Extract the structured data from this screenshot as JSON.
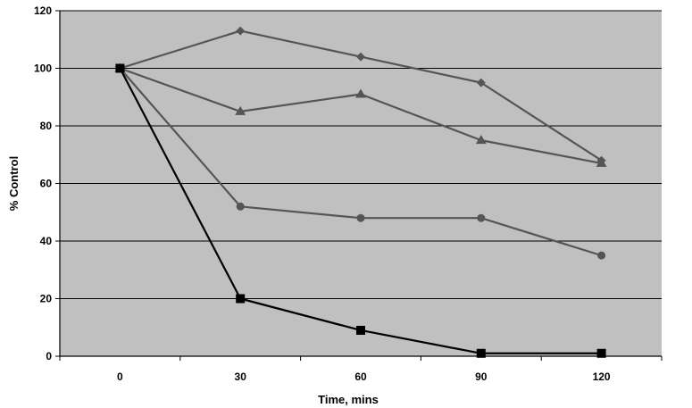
{
  "chart_data": {
    "type": "line",
    "title": "",
    "xlabel": "Time, mins",
    "ylabel": "% Control",
    "x": [
      0,
      30,
      60,
      90,
      120
    ],
    "x_ticks": [
      "0",
      "30",
      "60",
      "90",
      "120"
    ],
    "ylim": [
      0,
      120
    ],
    "y_ticks": [
      "0",
      "20",
      "40",
      "60",
      "80",
      "100",
      "120"
    ],
    "grid": "horizontal",
    "legend": "none",
    "colors": {
      "plot_background": "#c0c0c0",
      "gridline": "#000000",
      "gray_series": "#555555",
      "black_series": "#000000"
    },
    "series": [
      {
        "marker": "diamond",
        "color": "#555555",
        "values": [
          100,
          113,
          104,
          95,
          68
        ]
      },
      {
        "marker": "triangle",
        "color": "#555555",
        "values": [
          100,
          85,
          91,
          75,
          67
        ]
      },
      {
        "marker": "circle",
        "color": "#555555",
        "values": [
          100,
          52,
          48,
          48,
          35
        ]
      },
      {
        "marker": "square",
        "color": "#000000",
        "values": [
          100,
          20,
          9,
          1,
          1
        ]
      }
    ]
  }
}
